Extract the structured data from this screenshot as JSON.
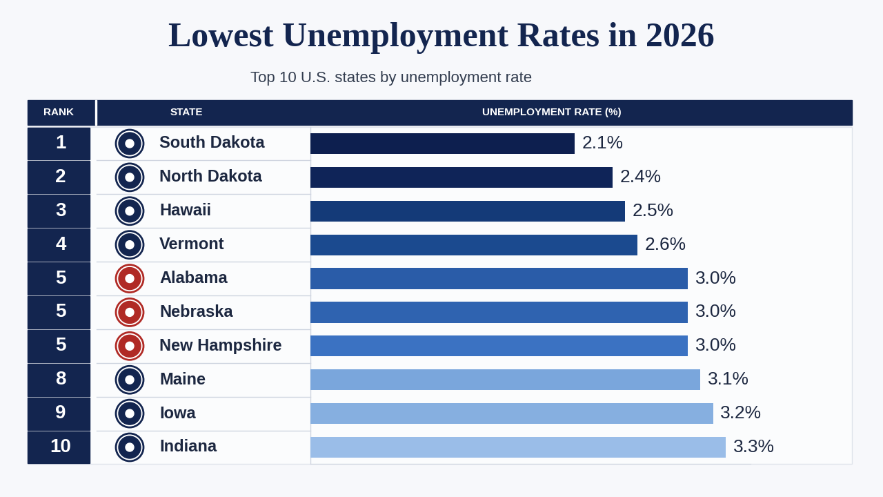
{
  "chart_data": {
    "type": "bar",
    "orientation": "horizontal",
    "title": "Lowest Unemployment Rates in 2026",
    "subtitle": "Top 10 U.S. states by unemployment rate",
    "rank_header": "RANK",
    "category_header": "STATE",
    "x_label": "UNEMPLOYMENT RATE (%)",
    "ranks": [
      1,
      2,
      3,
      4,
      5,
      5,
      5,
      8,
      9,
      10
    ],
    "categories": [
      "South Dakota",
      "North Dakota",
      "Hawaii",
      "Vermont",
      "Alabama",
      "Nebraska",
      "New Hampshire",
      "Maine",
      "Iowa",
      "Indiana"
    ],
    "values": [
      2.1,
      2.4,
      2.5,
      2.6,
      3.0,
      3.0,
      3.0,
      3.1,
      3.2,
      3.3
    ],
    "value_labels": [
      "2.1%",
      "2.4%",
      "2.5%",
      "2.6%",
      "3.0%",
      "3.0%",
      "3.0%",
      "3.1%",
      "3.2%",
      "3.3%"
    ],
    "colors": [
      "#0d1f4f",
      "#0f2458",
      "#143a78",
      "#1b4a8f",
      "#2a5ca8",
      "#2f63b0",
      "#3b72c2",
      "#7aa6dc",
      "#86afe0",
      "#9abde8"
    ],
    "xlim": [
      0,
      3.5
    ],
    "xticks": [],
    "tick_labels": false,
    "data_labels": true,
    "grid": false
  }
}
